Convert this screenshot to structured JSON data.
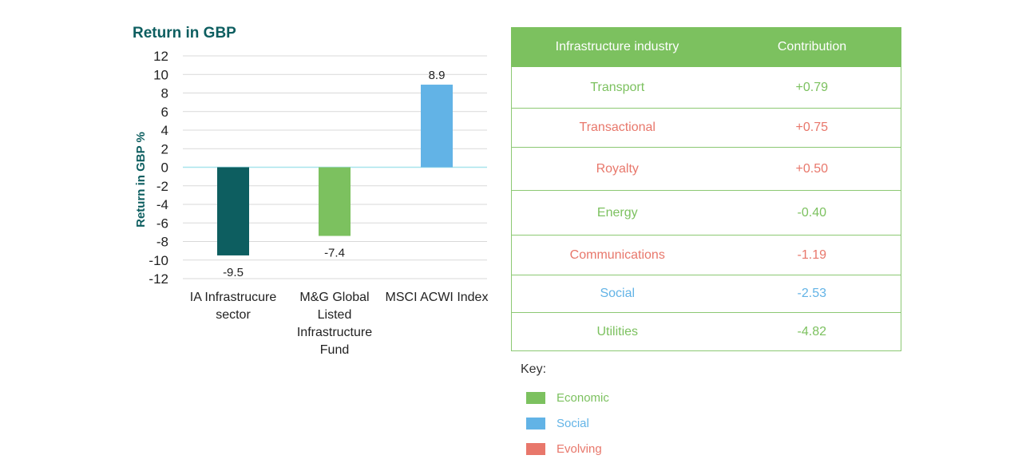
{
  "chart_data": {
    "type": "bar",
    "title": "Return in GBP",
    "ylabel": "Return in GBP %",
    "xlabel": "",
    "ylim": [
      -12,
      12
    ],
    "yticks": [
      12,
      10,
      8,
      6,
      4,
      2,
      0,
      -2,
      -4,
      -6,
      -8,
      -10,
      -12
    ],
    "grid": true,
    "categories": [
      "IA Infrastrucure sector",
      "M&G Global Listed Infrastructure Fund",
      "MSCI ACWI Index"
    ],
    "category_lines": [
      [
        "IA Infrastrucure",
        "sector"
      ],
      [
        "M&G Global",
        "Listed",
        "Infrastructure",
        "Fund"
      ],
      [
        "MSCI ACWI Index"
      ]
    ],
    "values": [
      -9.5,
      -7.4,
      8.9
    ],
    "value_labels": [
      "-9.5",
      "-7.4",
      "8.9"
    ],
    "colors": [
      "#0d5e60",
      "#7cc15f",
      "#62b3e6"
    ]
  },
  "table": {
    "headers": [
      "Infrastructure industry",
      "Contribution"
    ],
    "rows": [
      {
        "industry": "Transport",
        "contribution": "+0.79",
        "color": "#7cc15f"
      },
      {
        "industry": "Transactional",
        "contribution": "+0.75",
        "color": "#e8776b"
      },
      {
        "industry": "Royalty",
        "contribution": "+0.50",
        "color": "#e8776b"
      },
      {
        "industry": "Energy",
        "contribution": "-0.40",
        "color": "#7cc15f"
      },
      {
        "industry": "Communications",
        "contribution": "-1.19",
        "color": "#e8776b"
      },
      {
        "industry": "Social",
        "contribution": "-2.53",
        "color": "#62b3e6"
      },
      {
        "industry": "Utilities",
        "contribution": "-4.82",
        "color": "#7cc15f"
      }
    ],
    "header_color": "#7cc15f"
  },
  "key": {
    "title": "Key:",
    "items": [
      {
        "label": "Economic",
        "color": "#7cc15f",
        "icon": "economic-swatch-icon"
      },
      {
        "label": "Social",
        "color": "#62b3e6",
        "icon": "social-swatch-icon"
      },
      {
        "label": "Evolving",
        "color": "#e8776b",
        "icon": "evolving-swatch-icon"
      }
    ]
  }
}
